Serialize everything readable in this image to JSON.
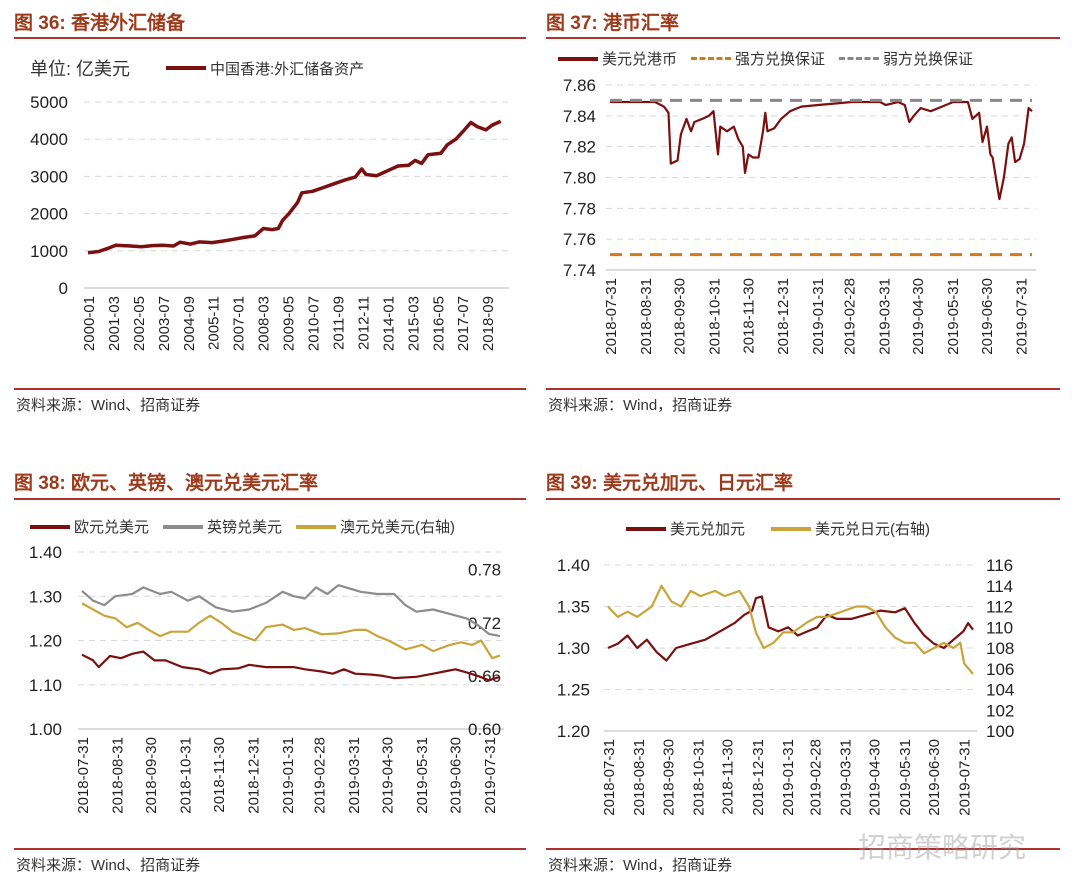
{
  "source_text_comma": "资料来源：Wind，招商证券",
  "source_text_dun": "资料来源：Wind、招商证券",
  "watermark": "招商策略研究",
  "colors": {
    "dark_red": "#7a1010",
    "gray": "#8c8c8c",
    "gold": "#c9a43a",
    "orange": "#d07a1a",
    "dash_gray": "#888888",
    "rule": "#b03030"
  },
  "chart_data": [
    {
      "id": "fig36",
      "type": "line",
      "title": "图 36:  香港外汇储备",
      "unit_label": "单位:  亿美元",
      "xlabel": "",
      "ylabel": "亿美元",
      "ylim": [
        0,
        5000
      ],
      "yticks": [
        "0",
        "1000",
        "2000",
        "3000",
        "4000",
        "5000"
      ],
      "xlim": [
        2000.0,
        2019.5
      ],
      "xtick_labels": [
        "2000-01",
        "2001-03",
        "2002-05",
        "2003-07",
        "2004-09",
        "2005-11",
        "2007-01",
        "2008-03",
        "2009-05",
        "2010-07",
        "2011-09",
        "2012-11",
        "2014-01",
        "2015-03",
        "2016-05",
        "2017-07",
        "2018-09"
      ],
      "xtick_step_years": 1.1667,
      "grid": true,
      "series": [
        {
          "name": "中国香港:外汇储备资产",
          "color": "#7a1010",
          "axis": "left",
          "x": [
            2000.0,
            2000.5,
            2001.0,
            2001.3,
            2002.0,
            2002.5,
            2003.0,
            2003.5,
            2004.0,
            2004.3,
            2004.8,
            2005.2,
            2005.8,
            2006.3,
            2006.8,
            2007.3,
            2007.8,
            2008.2,
            2008.6,
            2008.9,
            2009.1,
            2009.4,
            2009.8,
            2010.0,
            2010.5,
            2011.0,
            2011.5,
            2012.0,
            2012.5,
            2012.8,
            2013.0,
            2013.5,
            2014.0,
            2014.5,
            2015.0,
            2015.3,
            2015.6,
            2015.9,
            2016.5,
            2016.8,
            2017.2,
            2017.6,
            2017.9,
            2018.2,
            2018.6,
            2018.9,
            2019.3
          ],
          "y": [
            950,
            980,
            1080,
            1150,
            1130,
            1110,
            1140,
            1150,
            1130,
            1230,
            1180,
            1240,
            1220,
            1260,
            1310,
            1360,
            1400,
            1600,
            1570,
            1600,
            1820,
            2000,
            2300,
            2560,
            2600,
            2700,
            2800,
            2900,
            2980,
            3200,
            3050,
            3020,
            3150,
            3280,
            3300,
            3430,
            3350,
            3580,
            3620,
            3850,
            4000,
            4250,
            4450,
            4340,
            4250,
            4380,
            4480
          ]
        }
      ]
    },
    {
      "id": "fig37",
      "type": "line",
      "title": "图 37:  港币汇率",
      "xlabel": "",
      "ylabel": "",
      "ylim": [
        7.74,
        7.86
      ],
      "yticks": [
        "7.74",
        "7.76",
        "7.78",
        "7.80",
        "7.82",
        "7.84",
        "7.86"
      ],
      "xlim": [
        0,
        375
      ],
      "xtick_labels": [
        "2018-07-31",
        "2018-08-31",
        "2018-09-30",
        "2018-10-31",
        "2018-11-30",
        "2018-12-31",
        "2019-01-31",
        "2019-02-28",
        "2019-03-31",
        "2019-04-30",
        "2019-05-31",
        "2019-06-30",
        "2019-07-31"
      ],
      "xtick_days": [
        0,
        31,
        61,
        92,
        122,
        153,
        184,
        212,
        243,
        273,
        304,
        334,
        365
      ],
      "grid": true,
      "series": [
        {
          "name": "美元兑港币",
          "color": "#7a1010",
          "axis": "left",
          "x": [
            0,
            20,
            40,
            48,
            52,
            54,
            60,
            63,
            68,
            72,
            75,
            82,
            88,
            92,
            96,
            98,
            104,
            110,
            114,
            118,
            120,
            123,
            127,
            132,
            136,
            138,
            140,
            146,
            152,
            160,
            170,
            185,
            200,
            215,
            240,
            245,
            256,
            262,
            266,
            270,
            276,
            285,
            295,
            305,
            318,
            322,
            328,
            331,
            335,
            338,
            340,
            344,
            346,
            350,
            354,
            357,
            360,
            364,
            368,
            372,
            375
          ],
          "y": [
            7.849,
            7.849,
            7.849,
            7.846,
            7.842,
            7.809,
            7.811,
            7.828,
            7.838,
            7.83,
            7.836,
            7.838,
            7.84,
            7.843,
            7.815,
            7.833,
            7.83,
            7.833,
            7.825,
            7.82,
            7.803,
            7.815,
            7.813,
            7.813,
            7.83,
            7.842,
            7.83,
            7.832,
            7.838,
            7.843,
            7.846,
            7.847,
            7.848,
            7.849,
            7.849,
            7.847,
            7.849,
            7.847,
            7.836,
            7.84,
            7.845,
            7.843,
            7.846,
            7.849,
            7.849,
            7.838,
            7.842,
            7.823,
            7.833,
            7.815,
            7.813,
            7.795,
            7.786,
            7.8,
            7.822,
            7.826,
            7.81,
            7.812,
            7.822,
            7.845,
            7.843
          ]
        },
        {
          "name": "强方兑换保证",
          "color": "#d07a1a",
          "axis": "left",
          "dashed": true,
          "x": [
            0,
            375
          ],
          "y": [
            7.75,
            7.75
          ]
        },
        {
          "name": "弱方兑换保证",
          "color": "#888888",
          "axis": "left",
          "dashed": true,
          "x": [
            0,
            375
          ],
          "y": [
            7.85,
            7.85
          ]
        }
      ]
    },
    {
      "id": "fig38",
      "type": "line",
      "title": "图 38:  欧元、英镑、澳元兑美元汇率",
      "xlabel": "",
      "ylabel": "",
      "ylim": [
        1.0,
        1.4
      ],
      "yticks": [
        "1.00",
        "1.10",
        "1.20",
        "1.30",
        "1.40"
      ],
      "y2lim": [
        0.6,
        0.8
      ],
      "y2ticks": [
        "0.60",
        "0.66",
        "0.72",
        "0.78"
      ],
      "xlim": [
        0,
        375
      ],
      "xtick_labels": [
        "2018-07-31",
        "2018-08-31",
        "2018-09-30",
        "2018-10-31",
        "2018-11-30",
        "2018-12-31",
        "2019-01-31",
        "2019-02-28",
        "2019-03-31",
        "2019-04-30",
        "2019-05-31",
        "2019-06-30",
        "2019-07-31"
      ],
      "xtick_days": [
        0,
        31,
        61,
        92,
        122,
        153,
        184,
        212,
        243,
        273,
        304,
        334,
        365
      ],
      "grid": true,
      "series": [
        {
          "name": "欧元兑美元",
          "color": "#7a1010",
          "axis": "left",
          "x": [
            0,
            10,
            15,
            25,
            35,
            45,
            55,
            65,
            75,
            90,
            105,
            115,
            125,
            140,
            150,
            165,
            175,
            190,
            200,
            215,
            225,
            235,
            245,
            260,
            270,
            280,
            300,
            315,
            325,
            335,
            345,
            355,
            365,
            375
          ],
          "y": [
            1.168,
            1.155,
            1.14,
            1.165,
            1.16,
            1.17,
            1.175,
            1.155,
            1.155,
            1.14,
            1.135,
            1.125,
            1.135,
            1.137,
            1.145,
            1.14,
            1.14,
            1.14,
            1.135,
            1.13,
            1.125,
            1.135,
            1.125,
            1.123,
            1.12,
            1.115,
            1.118,
            1.125,
            1.13,
            1.135,
            1.128,
            1.12,
            1.11,
            1.118
          ]
        },
        {
          "name": "英镑兑美元",
          "color": "#8c8c8c",
          "axis": "left",
          "x": [
            0,
            10,
            20,
            30,
            45,
            55,
            70,
            80,
            95,
            105,
            120,
            135,
            150,
            165,
            180,
            190,
            200,
            210,
            220,
            230,
            250,
            265,
            280,
            290,
            300,
            315,
            330,
            345,
            355,
            365,
            375
          ],
          "y": [
            1.312,
            1.29,
            1.28,
            1.3,
            1.305,
            1.32,
            1.305,
            1.31,
            1.29,
            1.3,
            1.275,
            1.265,
            1.27,
            1.285,
            1.31,
            1.3,
            1.295,
            1.32,
            1.305,
            1.325,
            1.31,
            1.305,
            1.305,
            1.28,
            1.265,
            1.27,
            1.26,
            1.25,
            1.235,
            1.215,
            1.21
          ]
        },
        {
          "name": "澳元兑美元(右轴)",
          "color": "#c9a43a",
          "axis": "right",
          "x": [
            0,
            10,
            20,
            30,
            40,
            50,
            60,
            70,
            80,
            95,
            105,
            115,
            125,
            135,
            145,
            155,
            165,
            180,
            190,
            200,
            215,
            230,
            245,
            255,
            265,
            275,
            290,
            305,
            315,
            330,
            340,
            350,
            358,
            368,
            375
          ],
          "y": [
            0.742,
            0.735,
            0.728,
            0.725,
            0.715,
            0.72,
            0.712,
            0.705,
            0.71,
            0.71,
            0.72,
            0.728,
            0.72,
            0.71,
            0.705,
            0.7,
            0.715,
            0.718,
            0.712,
            0.714,
            0.707,
            0.708,
            0.712,
            0.712,
            0.705,
            0.7,
            0.69,
            0.695,
            0.688,
            0.695,
            0.698,
            0.695,
            0.7,
            0.68,
            0.683
          ]
        }
      ]
    },
    {
      "id": "fig39",
      "type": "line",
      "title": "图 39:  美元兑加元、日元汇率",
      "xlabel": "",
      "ylabel": "",
      "ylim": [
        1.2,
        1.4
      ],
      "yticks": [
        "1.20",
        "1.25",
        "1.30",
        "1.35",
        "1.40"
      ],
      "y2lim": [
        100,
        116
      ],
      "y2ticks": [
        "100",
        "102",
        "104",
        "106",
        "108",
        "110",
        "112",
        "114",
        "116"
      ],
      "xlim": [
        0,
        375
      ],
      "xtick_labels": [
        "2018-07-31",
        "2018-08-31",
        "2018-09-30",
        "2018-10-31",
        "2018-11-30",
        "2018-12-31",
        "2019-01-31",
        "2019-02-28",
        "2019-03-31",
        "2019-04-30",
        "2019-05-31",
        "2019-06-30",
        "2019-07-31"
      ],
      "xtick_days": [
        0,
        31,
        61,
        92,
        122,
        153,
        184,
        212,
        243,
        273,
        304,
        334,
        365
      ],
      "grid": true,
      "series": [
        {
          "name": "美元兑加元",
          "color": "#7a1010",
          "axis": "left",
          "x": [
            0,
            10,
            20,
            30,
            40,
            50,
            60,
            70,
            85,
            100,
            115,
            130,
            140,
            148,
            152,
            158,
            165,
            175,
            185,
            195,
            205,
            215,
            225,
            235,
            250,
            265,
            280,
            295,
            305,
            315,
            325,
            335,
            345,
            355,
            365,
            370,
            375
          ],
          "y": [
            1.3,
            1.305,
            1.315,
            1.3,
            1.31,
            1.295,
            1.285,
            1.3,
            1.305,
            1.31,
            1.32,
            1.33,
            1.34,
            1.345,
            1.36,
            1.362,
            1.325,
            1.32,
            1.325,
            1.315,
            1.32,
            1.325,
            1.34,
            1.335,
            1.335,
            1.34,
            1.345,
            1.343,
            1.348,
            1.33,
            1.315,
            1.305,
            1.3,
            1.31,
            1.32,
            1.33,
            1.322
          ]
        },
        {
          "name": "美元兑日元(右轴)",
          "color": "#c9a43a",
          "axis": "right",
          "x": [
            0,
            10,
            20,
            30,
            45,
            55,
            65,
            75,
            85,
            95,
            110,
            120,
            135,
            145,
            152,
            160,
            170,
            180,
            190,
            205,
            215,
            225,
            240,
            255,
            265,
            275,
            285,
            295,
            305,
            315,
            325,
            335,
            345,
            355,
            362,
            366,
            375
          ],
          "y": [
            112,
            111,
            111.5,
            111,
            112,
            114,
            112.5,
            112,
            113.5,
            113,
            113.5,
            113,
            113.5,
            112,
            109.5,
            108,
            108.5,
            109.5,
            109.5,
            110.5,
            111,
            111,
            111.5,
            112,
            112,
            111.5,
            110,
            109,
            108.5,
            108.5,
            107.5,
            108,
            108.5,
            108,
            108.5,
            106.5,
            105.5
          ]
        }
      ]
    }
  ]
}
